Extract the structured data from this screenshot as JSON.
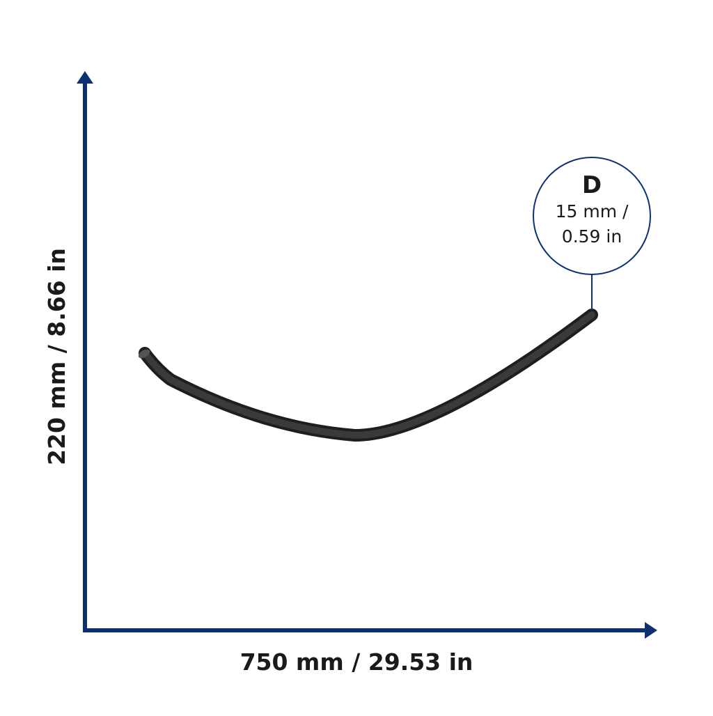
{
  "dimensions": {
    "width": "750 mm / 29.53 in",
    "height": "220 mm / 8.66 in"
  },
  "callout": {
    "label": "D",
    "line1": "15 mm /",
    "line2": "0.59 in"
  }
}
